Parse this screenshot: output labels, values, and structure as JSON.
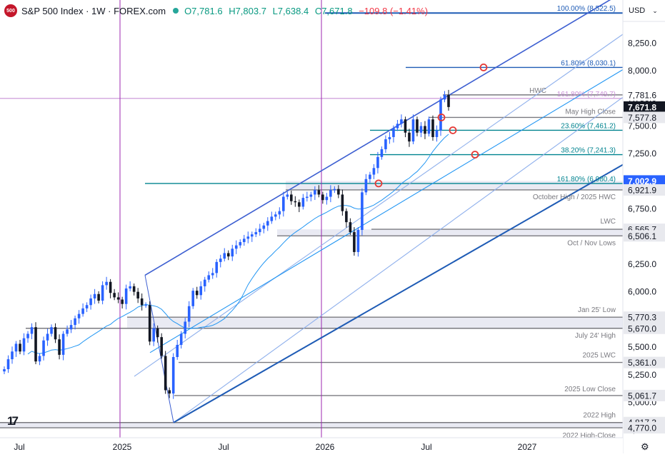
{
  "header": {
    "badge": "500",
    "title": "S&P 500 Index · 1W · FOREX.com",
    "o": "O7,781.6",
    "h": "H7,803.7",
    "l": "L7,638.4",
    "c": "C7,671.8",
    "change": "−109.8 (−1.41%)"
  },
  "currency": "USD",
  "tv_logo": "17",
  "colors": {
    "up": "#2962ff",
    "down": "#131722",
    "channel": "#3d5fd1",
    "mid": "#8fb0ec",
    "ma": "#2196f3",
    "vline": "#9c27b0",
    "fibTeal": "#00838f",
    "fibBlue": "#1e5bb5",
    "gray": "#7a7a80",
    "zone": "#d7d9ea",
    "hwc": "#c990d6"
  },
  "chart_data": {
    "type": "candlestick",
    "timeframe": "1W",
    "ylim": [
      4680,
      8640
    ],
    "x_ticks": [
      "Jul",
      "2025",
      "Jul",
      "2026",
      "Jul",
      "2027"
    ],
    "y_ticks": [
      "8,250.0",
      "8,000.0",
      "7,750.0",
      "7,500.0",
      "7,250.0",
      "7,000.0",
      "6,750.0",
      "6,500.0",
      "6,250.0",
      "6,000.0",
      "5,750.0",
      "5,500.0",
      "5,250.0",
      "5,000.0",
      "4,750.0"
    ],
    "price_labels": [
      {
        "text": "7,781.6",
        "value": 7781.6,
        "style": "plain"
      },
      {
        "text": "7,671.8",
        "value": 7671.8,
        "style": "dark"
      },
      {
        "text": "7,577.8",
        "value": 7577.8,
        "style": "gray"
      },
      {
        "text": "7,002.9",
        "value": 7002.9,
        "style": "blue"
      },
      {
        "text": "6,921.9",
        "value": 6921.9,
        "style": "gray"
      },
      {
        "text": "6,565.7",
        "value": 6565.7,
        "style": "gray"
      },
      {
        "text": "6,506.1",
        "value": 6506.1,
        "style": "gray"
      },
      {
        "text": "5,770.3",
        "value": 5770.3,
        "style": "gray"
      },
      {
        "text": "5,670.0",
        "value": 5670.0,
        "style": "gray"
      },
      {
        "text": "5,361.0",
        "value": 5361.0,
        "style": "gray"
      },
      {
        "text": "5,061.7",
        "value": 5061.7,
        "style": "gray"
      },
      {
        "text": "4,817.3",
        "value": 4817.3,
        "style": "gray"
      },
      {
        "text": "4,770.0",
        "value": 4770.0,
        "style": "gray"
      }
    ],
    "levels": [
      {
        "label": "HWC",
        "value": 7781.6
      },
      {
        "label": "May High Close",
        "value": 7577.8
      },
      {
        "label": "October High / 2025 HWC",
        "value": 6921.9
      },
      {
        "label": "LWC",
        "value": 6565.7
      },
      {
        "label": "Oct / Nov Lows",
        "value": 6506.1
      },
      {
        "label": "Jan 25' Low",
        "value": 5770.3
      },
      {
        "label": "July 24' High",
        "value": 5670.0
      },
      {
        "label": "2025 LWC",
        "value": 5361.0
      },
      {
        "label": "2025 Low Close",
        "value": 5061.7
      },
      {
        "label": "2022 High",
        "value": 4817.3
      },
      {
        "label": "2022 High-Close",
        "value": 4770.0
      }
    ],
    "fib_levels": [
      {
        "label": "100.00% (8,522.5)",
        "value": 8522.5
      },
      {
        "label": "61.80% (8,030.1)",
        "value": 8030.1
      },
      {
        "label": "161.80% (7,749.7)",
        "value": 7749.7
      },
      {
        "label": "23.60% (7,461.2)",
        "value": 7461.2
      },
      {
        "label": "38.20% (7,241.3)",
        "value": 7241.3
      },
      {
        "label": "161.80% (6,980.4)",
        "value": 6980.4
      }
    ],
    "closes": [
      5300,
      5390,
      5460,
      5530,
      5460,
      5580,
      5620,
      5680,
      5370,
      5420,
      5560,
      5620,
      5680,
      5570,
      5430,
      5620,
      5660,
      5700,
      5760,
      5800,
      5850,
      5880,
      5940,
      5980,
      5920,
      6060,
      6090,
      5990,
      5950,
      5930,
      5890,
      6030,
      6050,
      6000,
      5940,
      5880,
      5880,
      5550,
      5670,
      5590,
      5420,
      5110,
      5080,
      5410,
      5520,
      5620,
      5730,
      5870,
      6010,
      5970,
      6050,
      6110,
      6150,
      6170,
      6270,
      6300,
      6350,
      6320,
      6390,
      6420,
      6450,
      6480,
      6500,
      6520,
      6540,
      6570,
      6600,
      6640,
      6680,
      6700,
      6730,
      6860,
      6880,
      6820,
      6810,
      6770,
      6850,
      6860,
      6880,
      6920,
      6880,
      6830,
      6860,
      6920,
      6930,
      6880,
      6730,
      6630,
      6540,
      6360,
      6560,
      6900,
      7020,
      7060,
      7120,
      7220,
      7290,
      7380,
      7400,
      7480,
      7520,
      7560,
      7440,
      7360,
      7560,
      7440,
      7500,
      7430,
      7560,
      7400,
      7460,
      7740,
      7781.6,
      7671.8
    ]
  }
}
